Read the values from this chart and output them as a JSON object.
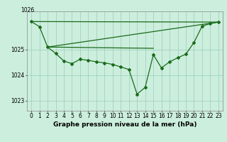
{
  "background_color": "#cceedd",
  "grid_color": "#99ccbb",
  "line_color": "#1a6b1a",
  "marker_color": "#1a6b1a",
  "xlabel": "Graphe pression niveau de la mer (hPa)",
  "ylabel_ticks": [
    1023,
    1024,
    1025
  ],
  "ytop_label": "1026",
  "xlim": [
    -0.5,
    23.5
  ],
  "ylim": [
    1022.6,
    1026.5
  ],
  "x_ticks": [
    0,
    1,
    2,
    3,
    4,
    5,
    6,
    7,
    8,
    9,
    10,
    11,
    12,
    13,
    14,
    15,
    16,
    17,
    18,
    19,
    20,
    21,
    22,
    23
  ],
  "series1_x": [
    0,
    1,
    2,
    3,
    4,
    5,
    6,
    7,
    8,
    9,
    10,
    11,
    12,
    13,
    14,
    15,
    16,
    17,
    18,
    19,
    20,
    21,
    22,
    23
  ],
  "series1_y": [
    1026.1,
    1025.9,
    1025.1,
    1024.85,
    1024.55,
    1024.45,
    1024.62,
    1024.58,
    1024.52,
    1024.48,
    1024.42,
    1024.32,
    1024.22,
    1023.25,
    1023.52,
    1024.8,
    1024.28,
    1024.52,
    1024.68,
    1024.82,
    1025.28,
    1025.92,
    1026.02,
    1026.08
  ],
  "series_line1_x": [
    0,
    23
  ],
  "series_line1_y": [
    1026.1,
    1026.08
  ],
  "series_line2_x": [
    2,
    23
  ],
  "series_line2_y": [
    1025.1,
    1026.08
  ],
  "series_line3_x": [
    2,
    15
  ],
  "series_line3_y": [
    1025.1,
    1025.05
  ],
  "xlabel_fontsize": 6.5,
  "tick_fontsize": 5.5
}
